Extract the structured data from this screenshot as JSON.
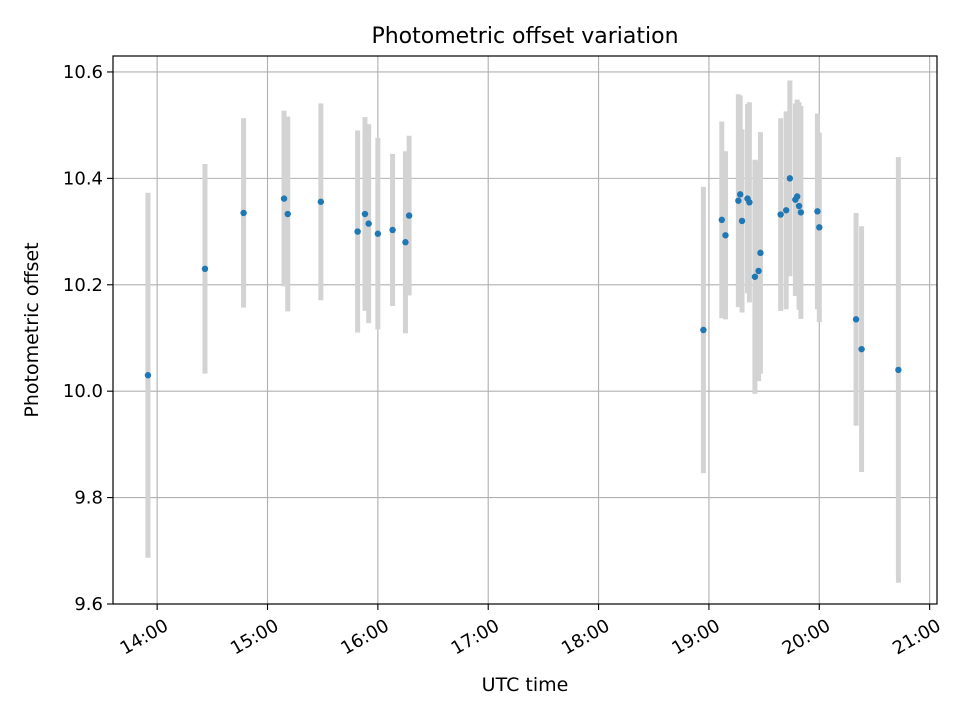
{
  "chart_data": {
    "type": "scatter",
    "title": "Photometric offset variation",
    "xlabel": "UTC time",
    "ylabel": "Photometric offset",
    "xlim": [
      "13:36",
      "21:04"
    ],
    "ylim": [
      9.6,
      10.63
    ],
    "xticks": [
      "14:00",
      "15:00",
      "16:00",
      "17:00",
      "18:00",
      "19:00",
      "20:00",
      "21:00"
    ],
    "yticks": [
      "9.6",
      "9.8",
      "10.0",
      "10.2",
      "10.4",
      "10.6"
    ],
    "grid": true,
    "marker_color": "#1f77b4",
    "errorbar_color": "#d3d3d3",
    "points": [
      {
        "x": "13:55",
        "y": 10.03,
        "err": 0.343
      },
      {
        "x": "14:26",
        "y": 10.23,
        "err": 0.197
      },
      {
        "x": "14:47",
        "y": 10.335,
        "err": 0.178
      },
      {
        "x": "15:09",
        "y": 10.362,
        "err": 0.165
      },
      {
        "x": "15:11",
        "y": 10.333,
        "err": 0.183
      },
      {
        "x": "15:29",
        "y": 10.356,
        "err": 0.185
      },
      {
        "x": "15:49",
        "y": 10.3,
        "err": 0.19
      },
      {
        "x": "15:53",
        "y": 10.333,
        "err": 0.182
      },
      {
        "x": "15:55",
        "y": 10.315,
        "err": 0.187
      },
      {
        "x": "16:00",
        "y": 10.296,
        "err": 0.18
      },
      {
        "x": "16:08",
        "y": 10.303,
        "err": 0.143
      },
      {
        "x": "16:15",
        "y": 10.28,
        "err": 0.171
      },
      {
        "x": "16:17",
        "y": 10.33,
        "err": 0.15
      },
      {
        "x": "18:57",
        "y": 10.115,
        "err": 0.269
      },
      {
        "x": "19:07",
        "y": 10.322,
        "err": 0.185
      },
      {
        "x": "19:09",
        "y": 10.293,
        "err": 0.158
      },
      {
        "x": "19:16",
        "y": 10.358,
        "err": 0.2
      },
      {
        "x": "19:17",
        "y": 10.37,
        "err": 0.186
      },
      {
        "x": "19:18",
        "y": 10.32,
        "err": 0.172
      },
      {
        "x": "19:21",
        "y": 10.362,
        "err": 0.178
      },
      {
        "x": "19:22",
        "y": 10.355,
        "err": 0.188
      },
      {
        "x": "19:25",
        "y": 10.215,
        "err": 0.22
      },
      {
        "x": "19:27",
        "y": 10.226,
        "err": 0.207
      },
      {
        "x": "19:28",
        "y": 10.26,
        "err": 0.227
      },
      {
        "x": "19:39",
        "y": 10.332,
        "err": 0.181
      },
      {
        "x": "19:42",
        "y": 10.34,
        "err": 0.186
      },
      {
        "x": "19:44",
        "y": 10.4,
        "err": 0.184
      },
      {
        "x": "19:47",
        "y": 10.36,
        "err": 0.181
      },
      {
        "x": "19:48",
        "y": 10.366,
        "err": 0.182
      },
      {
        "x": "19:49",
        "y": 10.348,
        "err": 0.195
      },
      {
        "x": "19:50",
        "y": 10.336,
        "err": 0.2
      },
      {
        "x": "19:59",
        "y": 10.338,
        "err": 0.184
      },
      {
        "x": "20:00",
        "y": 10.308,
        "err": 0.178
      },
      {
        "x": "20:20",
        "y": 10.135,
        "err": 0.2
      },
      {
        "x": "20:23",
        "y": 10.079,
        "err": 0.231
      },
      {
        "x": "20:43",
        "y": 10.04,
        "err": 0.4
      }
    ]
  }
}
